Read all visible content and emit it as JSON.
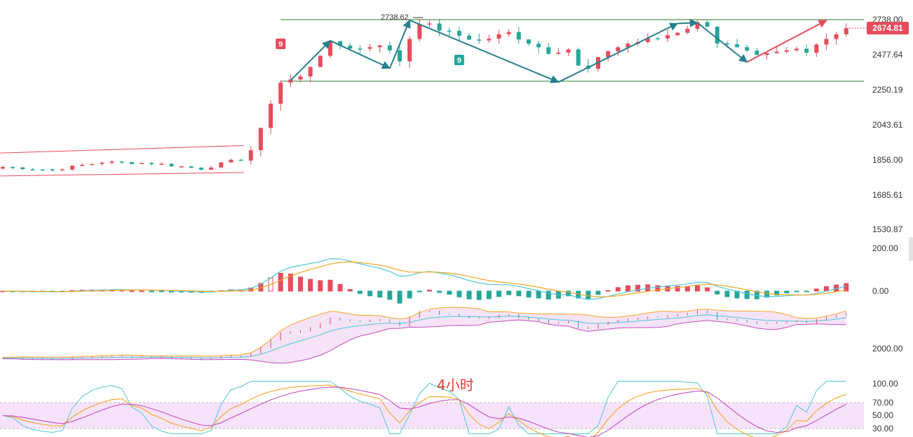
{
  "chart_data": [
    {
      "type": "candlestick",
      "panel": "price",
      "timeframe_label": "4小时",
      "y_ticks": [
        "2738.00",
        "2477.64",
        "2250.19",
        "2043.61",
        "1856.00",
        "1685.61",
        "1530.87"
      ],
      "last_price": "2674.81",
      "peak_label": "2738.62",
      "td_markers": [
        {
          "label": "9",
          "color": "#e74c5c",
          "at_bar": 28,
          "position": "above"
        },
        {
          "label": "9",
          "color": "#26a69a",
          "at_bar": 46,
          "position": "below"
        }
      ],
      "ylim": [
        1500,
        2760
      ],
      "up_color": "#e74c5c",
      "down_color": "#26a69a",
      "channels": [
        {
          "name": "",
          "color": "#e74c5c",
          "from_bar": 0,
          "to_bar": 24,
          "top": [
            1893,
            1933
          ],
          "bottom": [
            1778,
            1795
          ]
        },
        {
          "name": "",
          "color": "#2e7d32",
          "from_bar": 28,
          "to_bar": 83,
          "top": [
            2738,
            2738
          ],
          "bottom": [
            2306,
            2306
          ]
        }
      ],
      "zigzag": [
        {
          "color": "#26808a",
          "points": [
            [
              29,
              2310
            ],
            [
              33,
              2582
            ],
            [
              39,
              2390
            ],
            [
              41,
              2734
            ],
            [
              56,
              2300
            ],
            [
              68,
              2710
            ],
            [
              70,
              2715
            ],
            [
              75,
              2430
            ]
          ]
        },
        {
          "color": "#e74c5c",
          "points": [
            [
              75,
              2430
            ],
            [
              83,
              2732
            ]
          ]
        }
      ]
    },
    {
      "type": "macd",
      "panel": "macd",
      "y_ticks": [
        "200.00",
        "0.00"
      ],
      "ylim": [
        -70,
        230
      ],
      "colors": {
        "dif": "#4dc6d6",
        "dea": "#f5a623",
        "hist_up": "#e74c5c",
        "hist_down": "#26a69a"
      }
    },
    {
      "type": "bollinger",
      "panel": "boll",
      "y_ticks": [
        "2000.00"
      ],
      "colors": {
        "upper": "#f5a623",
        "middle": "#4dc6d6",
        "lower": "#c44fc1",
        "fill": "#f3dcf5"
      }
    },
    {
      "type": "kdj",
      "panel": "kdj",
      "y_ticks": [
        "100.00",
        "70.00",
        "50.00",
        "30.00"
      ],
      "ylim": [
        20,
        105
      ],
      "colors": {
        "k": "#f5a623",
        "d": "#c44fc1",
        "j": "#4dc6d6",
        "band": "#f6e3fb"
      }
    }
  ]
}
